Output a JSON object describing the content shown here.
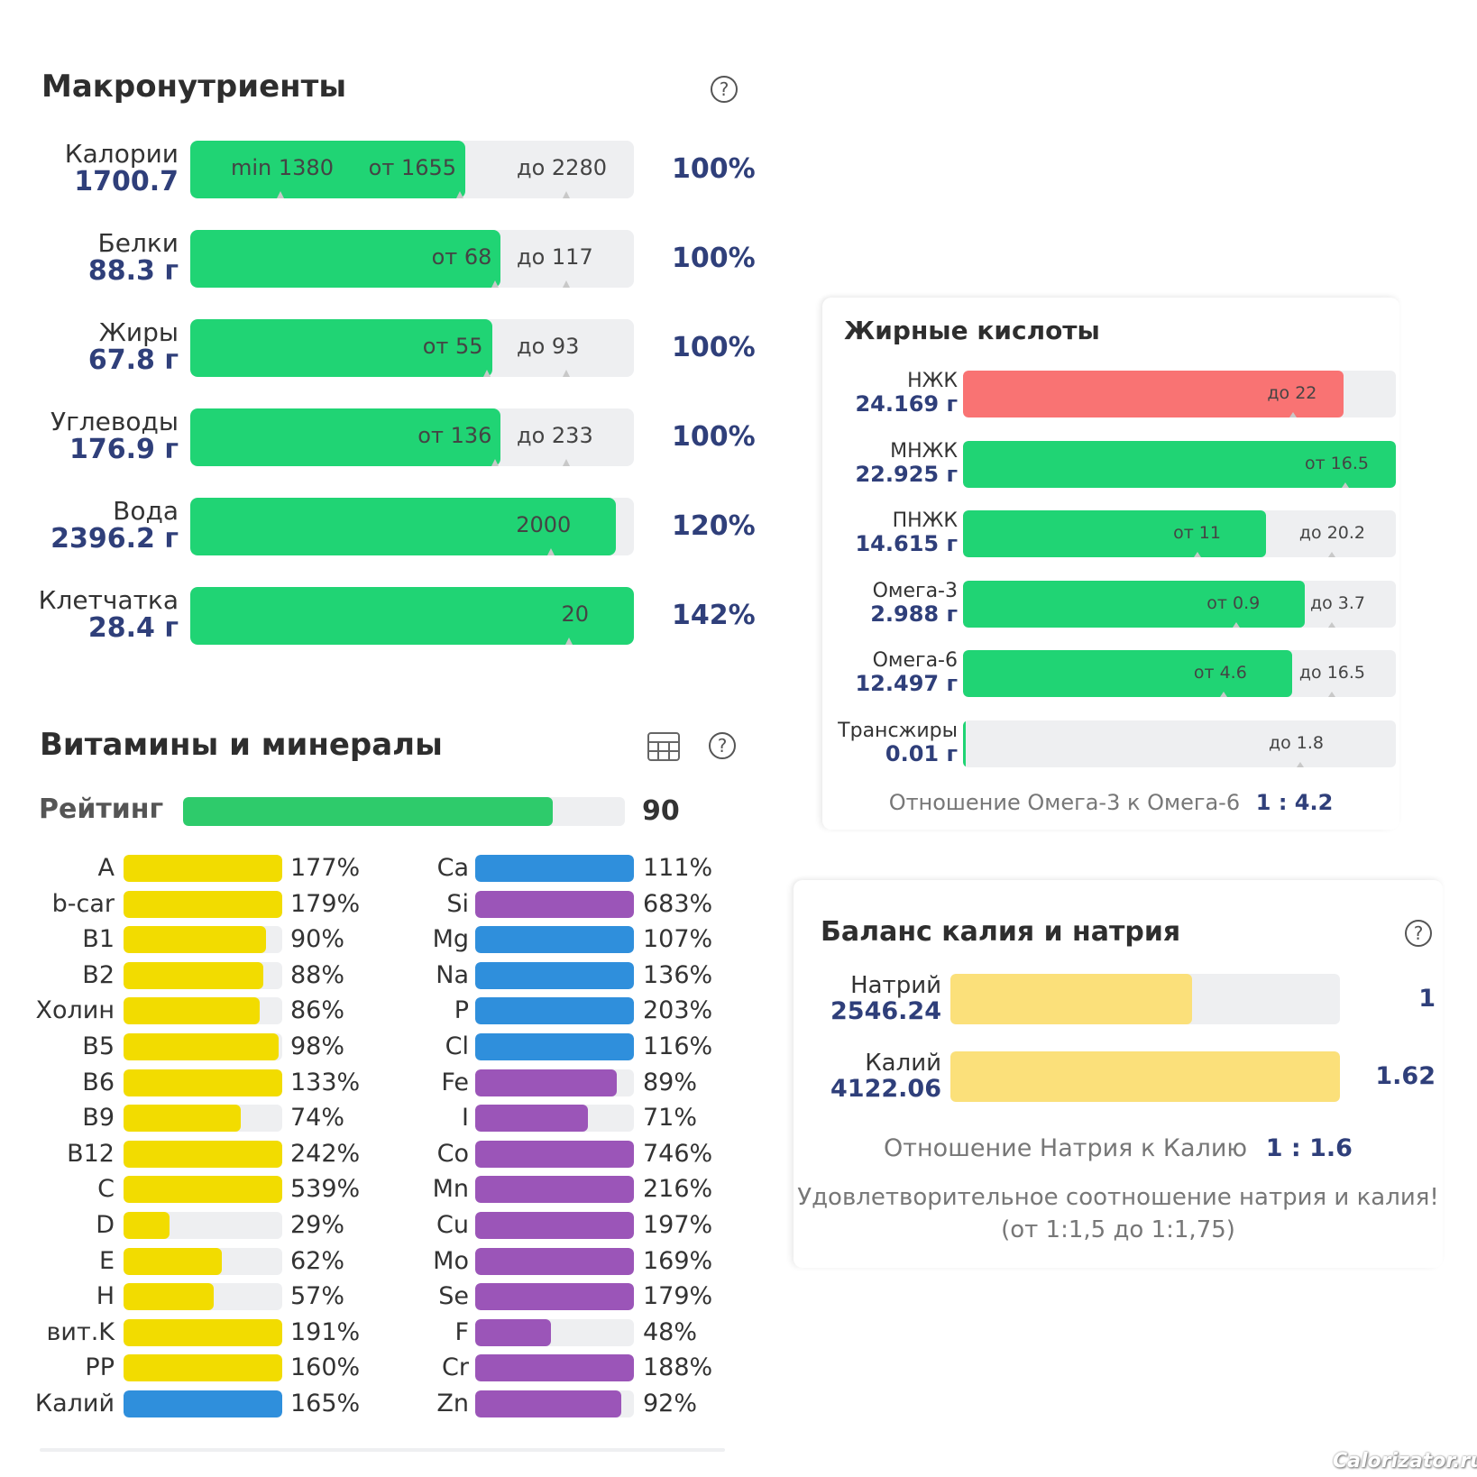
{
  "macros": {
    "title": "Макронутриенты",
    "rows": [
      {
        "name": "Калории",
        "value": "1700.7",
        "pct": "100%",
        "fill": 0.62,
        "marks": [
          "min 1380",
          "от 1655",
          "до 2280"
        ]
      },
      {
        "name": "Белки",
        "value": "88.3 г",
        "pct": "100%",
        "fill": 0.7,
        "marks": [
          "",
          "от 68",
          "до 117"
        ]
      },
      {
        "name": "Жиры",
        "value": "67.8 г",
        "pct": "100%",
        "fill": 0.68,
        "marks": [
          "",
          "от 55",
          "до 93"
        ]
      },
      {
        "name": "Углеводы",
        "value": "176.9 г",
        "pct": "100%",
        "fill": 0.7,
        "marks": [
          "",
          "от 136",
          "до 233"
        ]
      },
      {
        "name": "Вода",
        "value": "2396.2 г",
        "pct": "120%",
        "fill": 0.96,
        "marks": [
          "",
          "2000",
          ""
        ]
      },
      {
        "name": "Клетчатка",
        "value": "28.4 г",
        "pct": "142%",
        "fill": 1.0,
        "marks": [
          "",
          "20",
          ""
        ]
      }
    ]
  },
  "vitamins": {
    "title": "Витамины и минералы",
    "rating_label": "Рейтинг",
    "rating_value": "90",
    "rating_fill": 0.9,
    "left": [
      {
        "name": "A",
        "pct": "177%",
        "fill": 1.0,
        "color": "yellow"
      },
      {
        "name": "b-car",
        "pct": "179%",
        "fill": 1.0,
        "color": "yellow"
      },
      {
        "name": "B1",
        "pct": "90%",
        "fill": 0.9,
        "color": "yellow"
      },
      {
        "name": "B2",
        "pct": "88%",
        "fill": 0.88,
        "color": "yellow"
      },
      {
        "name": "Холин",
        "pct": "86%",
        "fill": 0.86,
        "color": "yellow"
      },
      {
        "name": "B5",
        "pct": "98%",
        "fill": 0.98,
        "color": "yellow"
      },
      {
        "name": "B6",
        "pct": "133%",
        "fill": 1.0,
        "color": "yellow"
      },
      {
        "name": "B9",
        "pct": "74%",
        "fill": 0.74,
        "color": "yellow"
      },
      {
        "name": "B12",
        "pct": "242%",
        "fill": 1.0,
        "color": "yellow"
      },
      {
        "name": "C",
        "pct": "539%",
        "fill": 1.0,
        "color": "yellow"
      },
      {
        "name": "D",
        "pct": "29%",
        "fill": 0.29,
        "color": "yellow"
      },
      {
        "name": "E",
        "pct": "62%",
        "fill": 0.62,
        "color": "yellow"
      },
      {
        "name": "H",
        "pct": "57%",
        "fill": 0.57,
        "color": "yellow"
      },
      {
        "name": "вит.K",
        "pct": "191%",
        "fill": 1.0,
        "color": "yellow"
      },
      {
        "name": "PP",
        "pct": "160%",
        "fill": 1.0,
        "color": "yellow"
      },
      {
        "name": "Калий",
        "pct": "165%",
        "fill": 1.0,
        "color": "blue"
      }
    ],
    "right": [
      {
        "name": "Ca",
        "pct": "111%",
        "fill": 1.0,
        "color": "blue"
      },
      {
        "name": "Si",
        "pct": "683%",
        "fill": 1.0,
        "color": "purple"
      },
      {
        "name": "Mg",
        "pct": "107%",
        "fill": 1.0,
        "color": "blue"
      },
      {
        "name": "Na",
        "pct": "136%",
        "fill": 1.0,
        "color": "blue"
      },
      {
        "name": "P",
        "pct": "203%",
        "fill": 1.0,
        "color": "blue"
      },
      {
        "name": "Cl",
        "pct": "116%",
        "fill": 1.0,
        "color": "blue"
      },
      {
        "name": "Fe",
        "pct": "89%",
        "fill": 0.89,
        "color": "purple"
      },
      {
        "name": "I",
        "pct": "71%",
        "fill": 0.71,
        "color": "purple"
      },
      {
        "name": "Co",
        "pct": "746%",
        "fill": 1.0,
        "color": "purple"
      },
      {
        "name": "Mn",
        "pct": "216%",
        "fill": 1.0,
        "color": "purple"
      },
      {
        "name": "Cu",
        "pct": "197%",
        "fill": 1.0,
        "color": "purple"
      },
      {
        "name": "Mo",
        "pct": "169%",
        "fill": 1.0,
        "color": "purple"
      },
      {
        "name": "Se",
        "pct": "179%",
        "fill": 1.0,
        "color": "purple"
      },
      {
        "name": "F",
        "pct": "48%",
        "fill": 0.48,
        "color": "purple"
      },
      {
        "name": "Cr",
        "pct": "188%",
        "fill": 1.0,
        "color": "purple"
      },
      {
        "name": "Zn",
        "pct": "92%",
        "fill": 0.92,
        "color": "purple"
      }
    ]
  },
  "fatty": {
    "title": "Жирные кислоты",
    "rows": [
      {
        "name": "НЖК",
        "value": "24.169 г",
        "fill": 0.88,
        "color": "red",
        "marks": [
          "до 22",
          ""
        ]
      },
      {
        "name": "МНЖК",
        "value": "22.925 г",
        "fill": 1.0,
        "color": "green",
        "marks": [
          "от 16.5",
          ""
        ]
      },
      {
        "name": "ПНЖК",
        "value": "14.615 г",
        "fill": 0.7,
        "color": "green",
        "marks": [
          "от 11",
          "до 20.2"
        ]
      },
      {
        "name": "Омега-3",
        "value": "2.988 г",
        "fill": 0.79,
        "color": "green",
        "marks": [
          "от 0.9",
          "до 3.7"
        ]
      },
      {
        "name": "Омега-6",
        "value": "12.497 г",
        "fill": 0.76,
        "color": "green",
        "marks": [
          "от 4.6",
          "до 16.5"
        ]
      },
      {
        "name": "Трансжиры",
        "value": "0.01 г",
        "fill": 0.005,
        "color": "green",
        "marks": [
          "до 1.8",
          ""
        ]
      }
    ],
    "ratio_label": "Отношение Омега-3 к Омега-6",
    "ratio_value": "1 : 4.2"
  },
  "balance": {
    "title": "Баланс калия и натрия",
    "rows": [
      {
        "name": "Натрий",
        "value": "2546.24",
        "fill": 0.62,
        "right": "1"
      },
      {
        "name": "Калий",
        "value": "4122.06",
        "fill": 1.0,
        "right": "1.62"
      }
    ],
    "ratio_label": "Отношение Натрия к Калию",
    "ratio_value": "1 : 1.6",
    "note_line1": "Удовлетворительное соотношение натрия и калия!",
    "note_line2": "(от 1:1,5 до 1:1,75)"
  },
  "watermark": "Calorizator.ru",
  "colors": {
    "green": "#20d474",
    "red": "#f97373",
    "yellow": "#f2dc00",
    "blue": "#2f8fdc",
    "purple": "#9b55b8",
    "balance": "#fbe07a",
    "rating": "#2ecb6b",
    "navy": "#2f3f7a"
  }
}
